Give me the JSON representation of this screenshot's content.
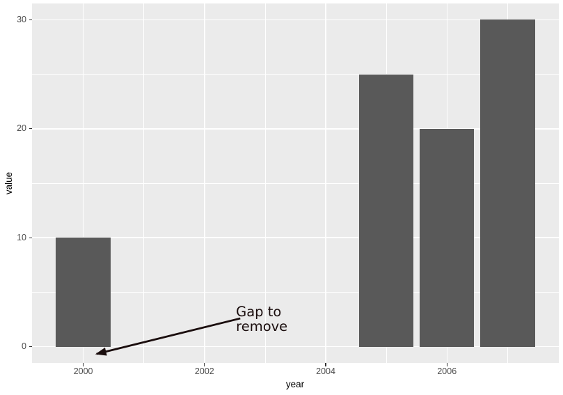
{
  "figure": {
    "background": "#FFFFFF"
  },
  "chart_data": {
    "type": "bar",
    "title": "",
    "x": [
      2000,
      2005,
      2006,
      2007
    ],
    "values": [
      10,
      25,
      20,
      30
    ],
    "bar_width_years": 0.9,
    "bar_fill": "#595959",
    "xlabel": "year",
    "ylabel": "value",
    "xlim": [
      1999.155,
      2007.845
    ],
    "ylim": [
      -1.5,
      31.5
    ],
    "x_major_ticks": [
      2000,
      2002,
      2004,
      2006
    ],
    "x_minor_ticks": [
      2001,
      2003,
      2005,
      2007
    ],
    "y_major_ticks": [
      0,
      10,
      20,
      30
    ],
    "y_minor_ticks": [
      5,
      15,
      25
    ],
    "panel_background": "#EBEBEB",
    "grid_color": "#FFFFFF",
    "tick_color": "#333333",
    "tick_label_color": "#4D4D4D",
    "axis_title_color": "#000000",
    "legend_position": "none",
    "annotation": {
      "text": "Gap to\nremove",
      "color": "#1A0D0D",
      "text_x": 2002.52,
      "text_y_top": 3.9,
      "arrow": {
        "x1": 2002.59,
        "y1": 2.59,
        "x2": 2000.22,
        "y2": -0.67
      }
    }
  }
}
